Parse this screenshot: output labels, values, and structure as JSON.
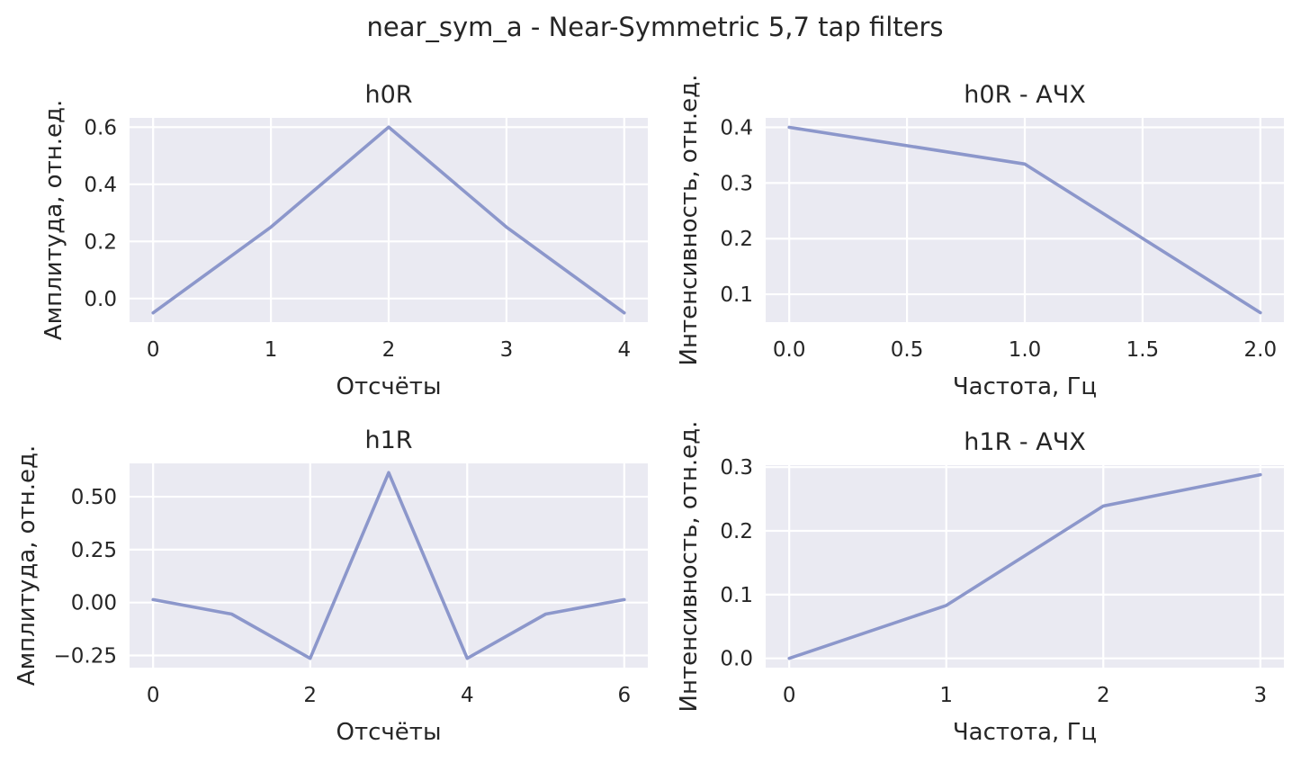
{
  "figure": {
    "suptitle": "near_sym_a - Near-Symmetric 5,7 tap filters",
    "line_color": "#8C97CB",
    "panel_background": "#EAEAF2",
    "grid_color": "#FFFFFF"
  },
  "chart_data": [
    {
      "type": "line",
      "title": "h0R",
      "xlabel": "Отсчёты",
      "ylabel": "Амплитуда, отн.ед.",
      "x": [
        0,
        1,
        2,
        3,
        4
      ],
      "y": [
        -0.05,
        0.25,
        0.6,
        0.25,
        -0.05
      ],
      "xlim": [
        -0.2,
        4.2
      ],
      "ylim": [
        -0.0825,
        0.6325
      ],
      "xticks": [
        0,
        1,
        2,
        3,
        4
      ],
      "xticklabels": [
        "0",
        "1",
        "2",
        "3",
        "4"
      ],
      "yticks": [
        0.0,
        0.2,
        0.4,
        0.6
      ],
      "yticklabels": [
        "0.0",
        "0.2",
        "0.4",
        "0.6"
      ],
      "grid": true
    },
    {
      "type": "line",
      "title": "h0R - АЧХ",
      "xlabel": "Частота, Гц",
      "ylabel": "Интенсивность, отн.ед.",
      "x": [
        0,
        1,
        2
      ],
      "y": [
        0.4,
        0.334,
        0.067
      ],
      "xlim": [
        -0.1,
        2.1
      ],
      "ylim": [
        0.05,
        0.417
      ],
      "xticks": [
        0.0,
        0.5,
        1.0,
        1.5,
        2.0
      ],
      "xticklabels": [
        "0.0",
        "0.5",
        "1.0",
        "1.5",
        "2.0"
      ],
      "yticks": [
        0.1,
        0.2,
        0.3,
        0.4
      ],
      "yticklabels": [
        "0.1",
        "0.2",
        "0.3",
        "0.4"
      ],
      "grid": true
    },
    {
      "type": "line",
      "title": "h1R",
      "xlabel": "Отсчёты",
      "ylabel": "Амплитуда, отн.ед.",
      "x": [
        0,
        1,
        2,
        3,
        4,
        5,
        6
      ],
      "y": [
        0.0137,
        -0.0546,
        -0.2636,
        0.6136,
        -0.2636,
        -0.0546,
        0.0137
      ],
      "xlim": [
        -0.3,
        6.3
      ],
      "ylim": [
        -0.3075,
        0.6575
      ],
      "xticks": [
        0,
        2,
        4,
        6
      ],
      "xticklabels": [
        "0",
        "2",
        "4",
        "6"
      ],
      "yticks": [
        -0.25,
        0.0,
        0.25,
        0.5
      ],
      "yticklabels": [
        "−0.25",
        "0.00",
        "0.25",
        "0.50"
      ],
      "grid": true
    },
    {
      "type": "line",
      "title": "h1R - АЧХ",
      "xlabel": "Частота, Гц",
      "ylabel": "Интенсивность, отн.ед.",
      "x": [
        0,
        1,
        2,
        3
      ],
      "y": [
        0.0,
        0.083,
        0.239,
        0.288
      ],
      "xlim": [
        -0.15,
        3.15
      ],
      "ylim": [
        -0.0145,
        0.303
      ],
      "xticks": [
        0,
        1,
        2,
        3
      ],
      "xticklabels": [
        "0",
        "1",
        "2",
        "3"
      ],
      "yticks": [
        0.0,
        0.1,
        0.2,
        0.3
      ],
      "yticklabels": [
        "0.0",
        "0.1",
        "0.2",
        "0.3"
      ],
      "grid": true
    }
  ]
}
